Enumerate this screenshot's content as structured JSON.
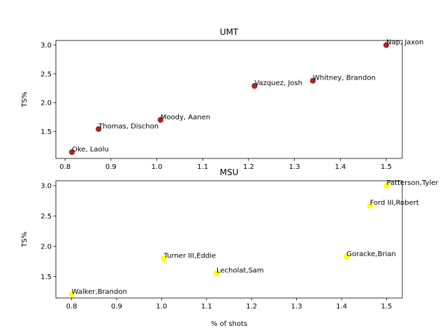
{
  "chart_data": [
    {
      "type": "scatter",
      "title": "UMT",
      "xlabel": "% of shots",
      "ylabel": "TS%",
      "xlim": [
        0.78,
        1.535
      ],
      "ylim": [
        1.03,
        3.08
      ],
      "xticks": [
        "0.8",
        "0.9",
        "1.0",
        "1.1",
        "1.2",
        "1.3",
        "1.4",
        "1.5"
      ],
      "yticks": [
        "1.5",
        "2.0",
        "2.5",
        "3.0"
      ],
      "grid": false,
      "point_color": "#a52a2a",
      "points": [
        {
          "label": "Oke, Laolu",
          "x": 0.815,
          "y": 1.14
        },
        {
          "label": "Thomas, Dischon",
          "x": 0.873,
          "y": 1.54
        },
        {
          "label": "Moody, Aanen",
          "x": 1.008,
          "y": 1.7
        },
        {
          "label": "Vazquez, Josh",
          "x": 1.213,
          "y": 2.29
        },
        {
          "label": "Whitney, Brandon",
          "x": 1.34,
          "y": 2.38
        },
        {
          "label": "Nap, Jaxon",
          "x": 1.5,
          "y": 3.0
        }
      ]
    },
    {
      "type": "scatter",
      "title": "MSU",
      "xlabel": "% of shots",
      "ylabel": "TS%",
      "xlim": [
        0.765,
        1.535
      ],
      "ylim": [
        1.15,
        3.08
      ],
      "xticks": [
        "0.8",
        "0.9",
        "1.0",
        "1.1",
        "1.2",
        "1.3",
        "1.4",
        "1.5"
      ],
      "yticks": [
        "1.5",
        "2.0",
        "2.5",
        "3.0"
      ],
      "grid": false,
      "point_color": "#ffff00",
      "points": [
        {
          "label": "Walker,Brandon",
          "x": 0.8,
          "y": 1.21
        },
        {
          "label": "Turner III,Eddie",
          "x": 1.005,
          "y": 1.8
        },
        {
          "label": "Lecholat,Sam",
          "x": 1.122,
          "y": 1.56
        },
        {
          "label": "Goracke,Brian",
          "x": 1.411,
          "y": 1.83
        },
        {
          "label": "Ford III,Robert",
          "x": 1.463,
          "y": 2.67
        },
        {
          "label": "Patterson,Tyler",
          "x": 1.5,
          "y": 3.0
        }
      ]
    }
  ]
}
